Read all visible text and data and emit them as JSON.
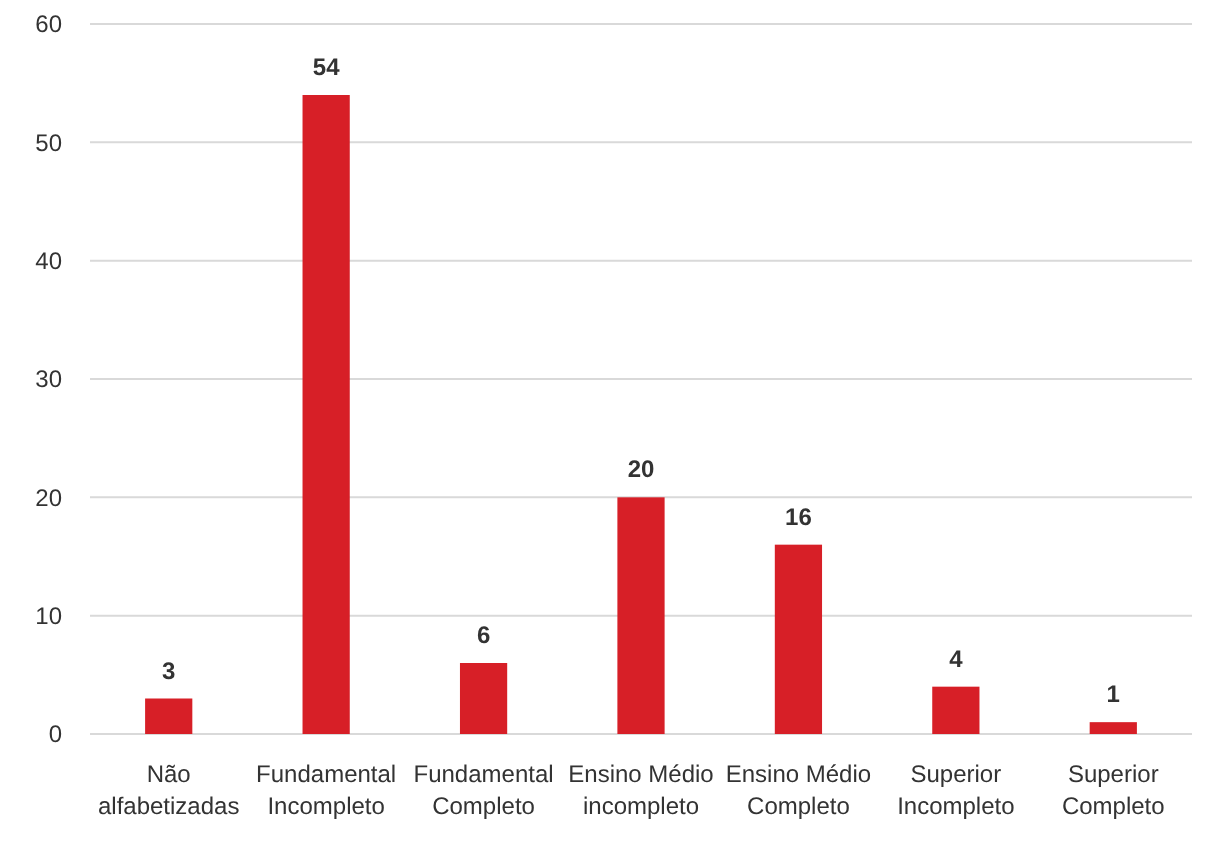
{
  "chart_data": {
    "type": "bar",
    "categories": [
      "Não alfabetizadas",
      "Fundamental Incompleto",
      "Fundamental Completo",
      "Ensino Médio incompleto",
      "Ensino Médio Completo",
      "Superior Incompleto",
      "Superior Completo"
    ],
    "values": [
      3,
      54,
      6,
      20,
      16,
      4,
      1
    ],
    "color": "#d71f27",
    "ylim": [
      0,
      60
    ],
    "yticks": [
      0,
      10,
      20,
      30,
      40,
      50,
      60
    ],
    "grid": "y",
    "data_labels": true
  }
}
